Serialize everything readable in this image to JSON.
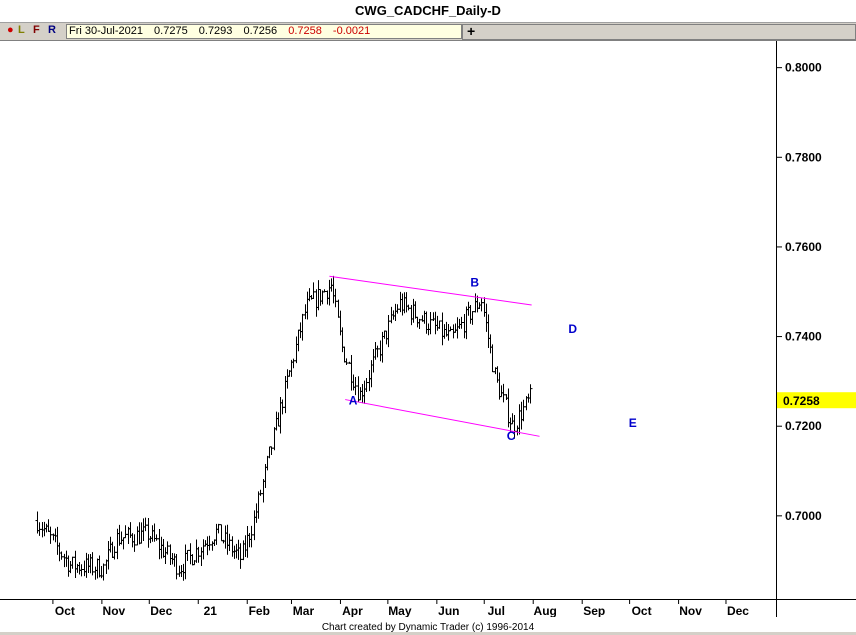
{
  "title": "CWG_CADCHF_Daily-D",
  "toolbar": {
    "letters": [
      {
        "label": "●",
        "color": "#cc0000"
      },
      {
        "label": "L",
        "color": "#808000"
      },
      {
        "label": "F",
        "color": "#800000"
      },
      {
        "label": "R",
        "color": "#000080"
      }
    ],
    "date": "Fri 30-Jul-2021",
    "open": "0.7275",
    "high": "0.7293",
    "low": "0.7256",
    "close": "0.7258",
    "change": "-0.0021",
    "crosshair": "+"
  },
  "footer": "Chart created by Dynamic Trader  (c)  1996-2014",
  "chart_data": {
    "type": "bar",
    "subtype": "ohlc",
    "title": "CWG_CADCHF_Daily-D",
    "ylim": [
      0.681,
      0.8055
    ],
    "x_ticks": [
      "Oct",
      "Nov",
      "Dec",
      "21",
      "Feb",
      "Mar",
      "Apr",
      "May",
      "Jun",
      "Jul",
      "Aug",
      "Sep",
      "Oct",
      "Nov",
      "Dec"
    ],
    "y_ticks": [
      "0.8000",
      "0.7800",
      "0.7600",
      "0.7400",
      "0.7200",
      "0.7000"
    ],
    "y_tick_values": [
      0.8,
      0.78,
      0.76,
      0.74,
      0.72,
      0.7
    ],
    "last_price": "0.7258",
    "last_price_value": 0.7258,
    "colors": {
      "bars": "#000000",
      "channel": "#ff00ff",
      "labels": "#0000cc",
      "price_tag": "#ffff00"
    },
    "swing_points": [
      {
        "label": "",
        "x": "2020-09-21",
        "y": 0.6985
      },
      {
        "label": "",
        "x": "2020-10-12",
        "y": 0.6885
      },
      {
        "label": "",
        "x": "2020-11-02",
        "y": 0.688
      },
      {
        "label": "",
        "x": "2020-11-10",
        "y": 0.6945
      },
      {
        "label": "",
        "x": "2020-11-30",
        "y": 0.6955
      },
      {
        "label": "",
        "x": "2020-12-20",
        "y": 0.688
      },
      {
        "label": "",
        "x": "2021-01-12",
        "y": 0.696
      },
      {
        "label": "",
        "x": "2021-01-28",
        "y": 0.69
      },
      {
        "label": "",
        "x": "2021-02-05",
        "y": 0.6985
      },
      {
        "label": "",
        "x": "2021-02-25",
        "y": 0.728
      },
      {
        "label": "",
        "x": "2021-03-10",
        "y": 0.746
      },
      {
        "label": "",
        "x": "2021-03-26",
        "y": 0.751
      },
      {
        "label": "",
        "x": "2021-04-02",
        "y": 0.737
      },
      {
        "label": "A",
        "x": "2021-04-13",
        "y": 0.7265
      },
      {
        "label": "",
        "x": "2021-05-08",
        "y": 0.747
      },
      {
        "label": "",
        "x": "2021-06-10",
        "y": 0.739
      },
      {
        "label": "B",
        "x": "2021-06-29",
        "y": 0.748
      },
      {
        "label": "",
        "x": "2021-07-08",
        "y": 0.73
      },
      {
        "label": "C",
        "x": "2021-07-19",
        "y": 0.7195
      },
      {
        "label": "",
        "x": "2021-07-30",
        "y": 0.7258
      }
    ],
    "channel_lines": [
      {
        "name": "upper",
        "x1": "2021-03-25",
        "y1": 0.753,
        "x2": "2021-07-31",
        "y2": 0.7466
      },
      {
        "name": "lower",
        "x1": "2021-04-04",
        "y1": 0.7255,
        "x2": "2021-08-05",
        "y2": 0.7173
      }
    ],
    "wave_labels": [
      {
        "label": "A",
        "x": "2021-04-09",
        "y": 0.7244
      },
      {
        "label": "B",
        "x": "2021-06-25",
        "y": 0.7507
      },
      {
        "label": "C",
        "x": "2021-07-18",
        "y": 0.7165
      },
      {
        "label": "D",
        "x": "2021-08-26",
        "y": 0.7403
      },
      {
        "label": "E",
        "x": "2021-10-03",
        "y": 0.7194
      }
    ]
  }
}
